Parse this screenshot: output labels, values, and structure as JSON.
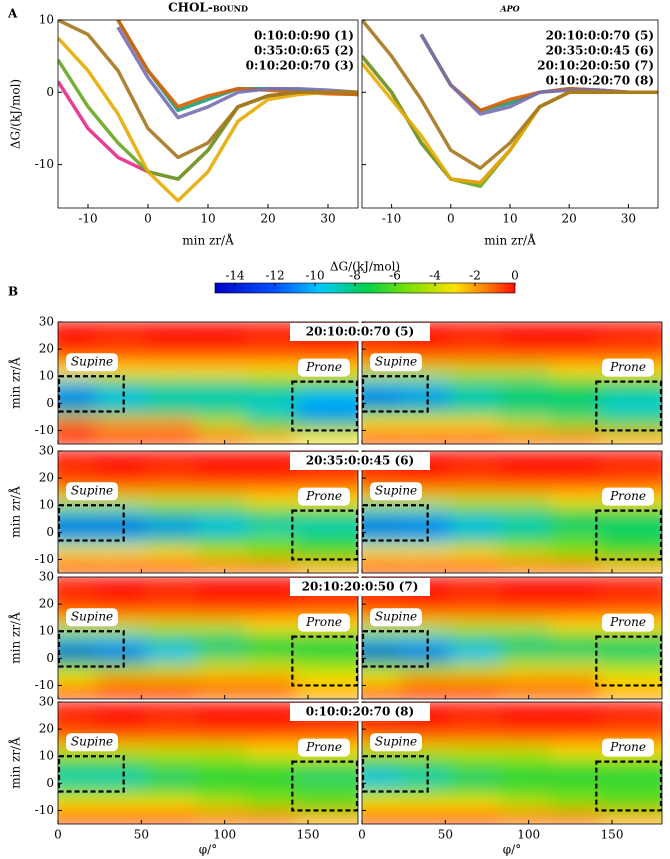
{
  "panel_labels": {
    "a": "A",
    "b": "B"
  },
  "chart_data": [
    {
      "type": "line",
      "title": "CHOL-bound",
      "y_label": "ΔG/(kJ/mol)",
      "x_label": "min zr/Å",
      "xlim": [
        -15,
        35
      ],
      "xticks": [
        -10,
        0,
        10,
        20,
        30
      ],
      "ylim": [
        -16,
        10
      ],
      "yticks": [
        -10,
        0,
        10
      ],
      "x": [
        -15,
        -10,
        -5,
        0,
        5,
        10,
        15,
        20,
        25,
        30,
        35
      ],
      "series": [
        {
          "name": "0:10:0:0:90 (1)",
          "color": "#1b9e77",
          "values": [
            null,
            null,
            10,
            3,
            -2.5,
            -1,
            0.5,
            0.5,
            0.3,
            0,
            -0.3
          ]
        },
        {
          "name": "0:35:0:0:65 (2)",
          "color": "#d95f02",
          "values": [
            null,
            null,
            10,
            3,
            -2,
            -0.5,
            0.5,
            0.3,
            0,
            -0.2,
            -0.3
          ]
        },
        {
          "name": "0:10:20:0:70 (3)",
          "color": "#7570b3",
          "values": [
            null,
            null,
            9,
            2,
            -3.5,
            -2,
            0,
            0.5,
            0.5,
            0.3,
            0
          ]
        },
        {
          "color": "#e7298a",
          "values": [
            1.5,
            -5,
            -9,
            -11,
            -12,
            -8,
            -2,
            -0.5,
            0,
            0,
            0
          ]
        },
        {
          "color": "#66a61e",
          "values": [
            4.5,
            -2,
            -7,
            -11,
            -12,
            -8,
            -2,
            -0.5,
            0,
            0,
            0
          ]
        },
        {
          "color": "#e6ab02",
          "values": [
            7.5,
            3,
            -3,
            -11,
            -15,
            -11,
            -4,
            -1,
            -0.3,
            0,
            0
          ]
        },
        {
          "color": "#a6761d",
          "values": [
            10,
            8,
            3,
            -5,
            -9,
            -7,
            -2,
            -0.5,
            0,
            0,
            0
          ]
        }
      ]
    },
    {
      "type": "line",
      "title": "apo",
      "x_label": "min zr/Å",
      "xlim": [
        -15,
        35
      ],
      "xticks": [
        -10,
        0,
        10,
        20,
        30
      ],
      "ylim": [
        -16,
        10
      ],
      "yticks": [
        -10,
        0,
        10
      ],
      "x": [
        -15,
        -10,
        -5,
        0,
        5,
        10,
        15,
        20,
        25,
        30,
        35
      ],
      "series": [
        {
          "color": "#1b9e77",
          "values": [
            null,
            null,
            8,
            1,
            -2.5,
            -1.5,
            0,
            0.5,
            0.3,
            0,
            0
          ]
        },
        {
          "color": "#d95f02",
          "values": [
            null,
            null,
            8,
            1,
            -2.5,
            -1,
            0,
            0.5,
            0.3,
            0,
            0
          ]
        },
        {
          "color": "#7570b3",
          "values": [
            null,
            null,
            8,
            1,
            -3,
            -2,
            0,
            0.3,
            0.3,
            0,
            0
          ]
        },
        {
          "name": "20:10:0:0:70 (5)",
          "color": "#e7298a",
          "values": [
            5,
            0,
            -7,
            -12,
            -12.5,
            -8,
            -2,
            0,
            0,
            0,
            0
          ]
        },
        {
          "name": "20:35:0:0:45 (6)",
          "color": "#66a61e",
          "values": [
            5,
            0,
            -7,
            -12,
            -13,
            -8,
            -2,
            0,
            0,
            0,
            0
          ]
        },
        {
          "name": "20:10:20:0:50 (7)",
          "color": "#e6ab02",
          "values": [
            4,
            -1,
            -6,
            -12,
            -12.5,
            -8,
            -2,
            0,
            0,
            0,
            0
          ]
        },
        {
          "name": "0:10:0:20:70 (8)",
          "color": "#a6761d",
          "values": [
            10,
            5,
            -1,
            -8,
            -10.5,
            -7,
            -2,
            0,
            0,
            0,
            0
          ]
        }
      ]
    },
    {
      "type": "heatmap",
      "x_label": "φ/°",
      "y_label": "min zr/Å",
      "xlim": [
        0,
        180
      ],
      "xticks": [
        0,
        50,
        100,
        150
      ],
      "ylim": [
        -15,
        30
      ],
      "yticks": [
        -10,
        0,
        10,
        20,
        30
      ],
      "x_bins": [
        0,
        30,
        60,
        90,
        120,
        150,
        180
      ],
      "y_bins": [
        -15,
        -10,
        -5,
        0,
        5,
        10,
        15,
        20,
        25,
        30
      ],
      "colorbar": {
        "title": "ΔG/(kJ/mol)",
        "lim": [
          -15,
          0
        ],
        "ticks": [
          -14,
          -12,
          -10,
          -8,
          -6,
          -4,
          -2,
          0
        ]
      },
      "regions": [
        {
          "label": "Supine",
          "xlim": [
            0,
            40
          ],
          "ylim": [
            -3,
            10
          ]
        },
        {
          "label": "Prone",
          "xlim": [
            140,
            180
          ],
          "ylim": [
            -10,
            8
          ]
        }
      ],
      "panels": [
        {
          "title": "20:10:0:0:70 (5)",
          "left": [
            [
              0,
              0,
              0,
              -1,
              -2,
              -3
            ],
            [
              -1,
              -2,
              -2,
              -4,
              -6,
              -8
            ],
            [
              -8,
              -8,
              -8,
              -8,
              -9,
              -11
            ],
            [
              -12,
              -10,
              -9,
              -9,
              -9,
              -10
            ],
            [
              -9,
              -8,
              -8,
              -8,
              -7,
              -7
            ],
            [
              -3,
              -3,
              -3,
              -3,
              -3,
              -3
            ],
            [
              -1,
              -1,
              -1,
              -1,
              -1,
              -1
            ],
            [
              0,
              -0.5,
              0,
              0,
              -0.5,
              0
            ],
            [
              0,
              0,
              0,
              0,
              0,
              0
            ]
          ],
          "right": [
            [
              0,
              0,
              0,
              -1,
              -1,
              -2
            ],
            [
              -3,
              -3,
              -3,
              -4,
              -5,
              -6
            ],
            [
              -8,
              -8,
              -8,
              -8,
              -8,
              -9
            ],
            [
              -12,
              -11,
              -9,
              -8,
              -8,
              -9
            ],
            [
              -9,
              -9,
              -8,
              -8,
              -7,
              -7
            ],
            [
              -4,
              -4,
              -4,
              -4,
              -3,
              -3
            ],
            [
              -1,
              -1,
              -1,
              -1,
              -1,
              -1
            ],
            [
              -0.5,
              0,
              -0.5,
              0,
              0,
              -0.5
            ],
            [
              0,
              0,
              0,
              0,
              0,
              0
            ]
          ]
        },
        {
          "title": "20:35:0:0:45 (6)",
          "left": [
            [
              0,
              0,
              0,
              -1,
              -1,
              -2
            ],
            [
              -3,
              -3,
              -3,
              -4,
              -5,
              -6
            ],
            [
              -9,
              -9,
              -8,
              -7,
              -6,
              -7
            ],
            [
              -13,
              -13,
              -11,
              -10,
              -9,
              -9
            ],
            [
              -9,
              -9,
              -8,
              -8,
              -7,
              -7
            ],
            [
              -4,
              -4,
              -4,
              -4,
              -3,
              -3
            ],
            [
              -1,
              -1,
              -1,
              -1,
              -1,
              -1
            ],
            [
              -0.5,
              0,
              -0.5,
              0,
              0,
              -0.5
            ],
            [
              0,
              0,
              0,
              0,
              0,
              0
            ]
          ],
          "right": [
            [
              0,
              0,
              0,
              -1,
              -1,
              -2
            ],
            [
              -3,
              -3,
              -3,
              -4,
              -5,
              -6
            ],
            [
              -9,
              -9,
              -8,
              -7,
              -6,
              -7
            ],
            [
              -13,
              -12,
              -10,
              -9,
              -8,
              -8
            ],
            [
              -9,
              -9,
              -8,
              -8,
              -7,
              -7
            ],
            [
              -4,
              -4,
              -4,
              -4,
              -3,
              -3
            ],
            [
              -1,
              -1,
              -1,
              -1,
              -1,
              -1
            ],
            [
              -0.5,
              0,
              -0.5,
              0,
              0,
              -0.5
            ],
            [
              0,
              0,
              0,
              0,
              0,
              0
            ]
          ]
        },
        {
          "title": "20:10:20:0:50 (7)",
          "left": [
            [
              0,
              0,
              0,
              -1,
              -1,
              -2
            ],
            [
              -3,
              -2,
              -2,
              -2,
              -2,
              -3
            ],
            [
              -6,
              -6,
              -5,
              -4,
              -4,
              -5
            ],
            [
              -14,
              -12,
              -10,
              -8,
              -7,
              -7
            ],
            [
              -9,
              -9,
              -8,
              -8,
              -7,
              -7
            ],
            [
              -4,
              -4,
              -4,
              -4,
              -3,
              -3
            ],
            [
              -1,
              -1,
              -1,
              -1,
              -1,
              -1
            ],
            [
              -0.5,
              0,
              -0.5,
              0,
              0,
              -0.5
            ],
            [
              0,
              0,
              0,
              0,
              0,
              0
            ]
          ],
          "right": [
            [
              0,
              0,
              0,
              -1,
              -1,
              -2
            ],
            [
              -3,
              -2,
              -2,
              -2,
              -2,
              -3
            ],
            [
              -6,
              -6,
              -5,
              -4,
              -4,
              -5
            ],
            [
              -14,
              -12,
              -10,
              -8,
              -8,
              -8
            ],
            [
              -9,
              -9,
              -8,
              -8,
              -7,
              -7
            ],
            [
              -4,
              -4,
              -4,
              -4,
              -3,
              -3
            ],
            [
              -1,
              -1,
              -1,
              -1,
              -1,
              -1
            ],
            [
              -0.5,
              0,
              -0.5,
              0,
              0,
              -0.5
            ],
            [
              0,
              0,
              0,
              0,
              0,
              0
            ]
          ]
        },
        {
          "title": "0:10:0:20:70 (8)",
          "left": [
            [
              0,
              0,
              0,
              -1,
              -1,
              -2
            ],
            [
              -3,
              -3,
              -3,
              -4,
              -5,
              -6
            ],
            [
              -6,
              -6,
              -6,
              -6,
              -6,
              -6
            ],
            [
              -9,
              -9,
              -8,
              -7,
              -7,
              -8
            ],
            [
              -7,
              -7,
              -6,
              -6,
              -6,
              -6
            ],
            [
              -4,
              -4,
              -4,
              -4,
              -3,
              -3
            ],
            [
              -1,
              -1,
              -1,
              -1,
              -1,
              -1
            ],
            [
              -0.5,
              0,
              -0.5,
              0,
              0,
              -0.5
            ],
            [
              0,
              0,
              0,
              0,
              0,
              0
            ]
          ],
          "right": [
            [
              0,
              0,
              0,
              -1,
              -1,
              -2
            ],
            [
              -3,
              -3,
              -3,
              -4,
              -5,
              -6
            ],
            [
              -6,
              -6,
              -6,
              -6,
              -6,
              -6
            ],
            [
              -10,
              -9,
              -8,
              -7,
              -7,
              -7
            ],
            [
              -7,
              -7,
              -6,
              -6,
              -6,
              -6
            ],
            [
              -4,
              -4,
              -4,
              -4,
              -3,
              -3
            ],
            [
              -1,
              -1,
              -1,
              -1,
              -1,
              -1
            ],
            [
              -0.5,
              0,
              -0.5,
              0,
              0,
              -0.5
            ],
            [
              0,
              0,
              0,
              0,
              0,
              0
            ]
          ]
        }
      ]
    }
  ]
}
